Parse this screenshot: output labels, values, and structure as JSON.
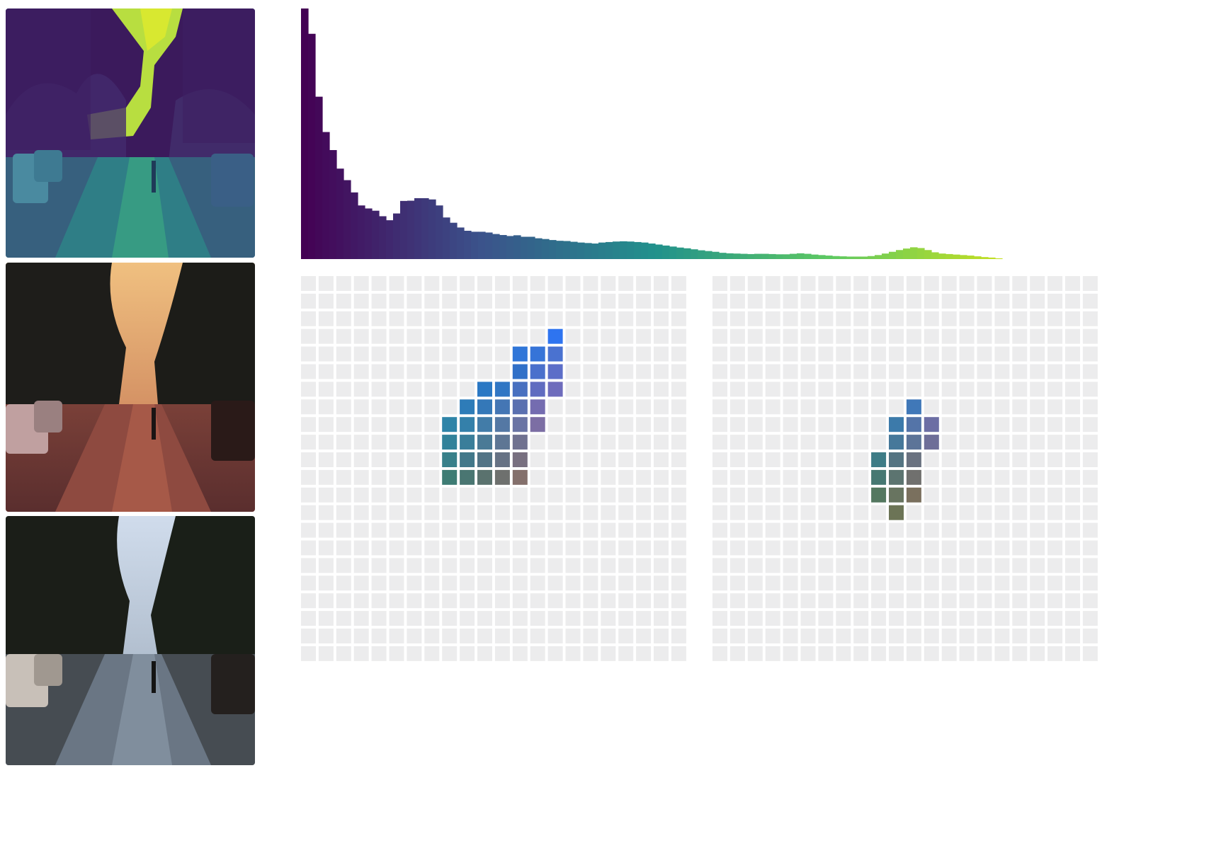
{
  "images": [
    {
      "name": "viridis-luminance-thumbnail",
      "palette": "viridis"
    },
    {
      "name": "sunset-street-photo",
      "palette": "warm"
    },
    {
      "name": "cool-street-photo",
      "palette": "cool"
    }
  ],
  "colors": {
    "empty_cell": "#ececed",
    "viridis": [
      "#440154",
      "#3b528b",
      "#21918c",
      "#5ec962",
      "#c8e020"
    ],
    "warm_sky": "#e8b070",
    "cool_sky": "#c6d0e0"
  },
  "chart_data": [
    {
      "type": "bar",
      "colormap": "viridis",
      "x": [
        0,
        1,
        2,
        3,
        4,
        5,
        6,
        7,
        8,
        9,
        10,
        11,
        12,
        13,
        14,
        15,
        16,
        17,
        18,
        19,
        20,
        21,
        22,
        23,
        24,
        25,
        26,
        27,
        28,
        29,
        30,
        31,
        32,
        33,
        34,
        35,
        36,
        37,
        38,
        39,
        40,
        41,
        42,
        43,
        44,
        45,
        46,
        47,
        48,
        49,
        50,
        51,
        52,
        53,
        54,
        55,
        56,
        57,
        58,
        59,
        60,
        61,
        62,
        63,
        64,
        65,
        66,
        67,
        68,
        69,
        70,
        71,
        72,
        73,
        74,
        75,
        76,
        77,
        78,
        79,
        80,
        81,
        82,
        83,
        84,
        85,
        86,
        87,
        88,
        89,
        90,
        91,
        92,
        93,
        94,
        95,
        96,
        97,
        98,
        99
      ],
      "values": [
        100,
        89.9,
        64.8,
        50.7,
        43.5,
        36.1,
        31.5,
        26.6,
        21.4,
        20.2,
        19.3,
        17.1,
        15.5,
        18.2,
        23.2,
        23.3,
        24.3,
        24.3,
        23.8,
        21.4,
        16.6,
        14.5,
        12.6,
        11.3,
        10.9,
        10.9,
        10.6,
        10.0,
        9.6,
        9.2,
        9.5,
        8.9,
        8.9,
        8.3,
        8.0,
        7.6,
        7.3,
        7.2,
        6.9,
        6.6,
        6.4,
        6.2,
        6.6,
        6.8,
        7.0,
        7.1,
        7.0,
        6.8,
        6.6,
        6.2,
        5.8,
        5.4,
        5.0,
        4.6,
        4.3,
        3.9,
        3.5,
        3.2,
        2.9,
        2.5,
        2.3,
        2.2,
        2.1,
        2.0,
        2.1,
        2.1,
        2.0,
        1.9,
        1.9,
        2.1,
        2.3,
        2.1,
        1.8,
        1.6,
        1.4,
        1.2,
        1.1,
        1.0,
        1.0,
        1.0,
        1.2,
        1.6,
        2.2,
        2.9,
        3.6,
        4.2,
        4.7,
        4.4,
        3.6,
        2.7,
        2.2,
        2.0,
        1.8,
        1.6,
        1.4,
        1.1,
        0.8,
        0.6,
        0.3,
        0.0
      ],
      "ylim": [
        0,
        100
      ]
    },
    {
      "type": "heatmap",
      "rows": 22,
      "cols": 22,
      "cells": [
        {
          "r": 3,
          "c": 14,
          "color": "#2e74f0"
        },
        {
          "r": 4,
          "c": 12,
          "color": "#3076d8"
        },
        {
          "r": 4,
          "c": 13,
          "color": "#3674d8"
        },
        {
          "r": 4,
          "c": 14,
          "color": "#4a72d0"
        },
        {
          "r": 5,
          "c": 12,
          "color": "#3070c8"
        },
        {
          "r": 5,
          "c": 13,
          "color": "#4a70cc"
        },
        {
          "r": 5,
          "c": 14,
          "color": "#5c6ec8"
        },
        {
          "r": 6,
          "c": 10,
          "color": "#2a78c4"
        },
        {
          "r": 6,
          "c": 11,
          "color": "#3076c4"
        },
        {
          "r": 6,
          "c": 12,
          "color": "#4870c0"
        },
        {
          "r": 6,
          "c": 13,
          "color": "#606cc0"
        },
        {
          "r": 6,
          "c": 14,
          "color": "#6e6cbc"
        },
        {
          "r": 7,
          "c": 9,
          "color": "#2e7cb8"
        },
        {
          "r": 7,
          "c": 10,
          "color": "#3478b8"
        },
        {
          "r": 7,
          "c": 11,
          "color": "#4476b4"
        },
        {
          "r": 7,
          "c": 12,
          "color": "#5a70b0"
        },
        {
          "r": 7,
          "c": 13,
          "color": "#746cb0"
        },
        {
          "r": 8,
          "c": 8,
          "color": "#2e84a8"
        },
        {
          "r": 8,
          "c": 9,
          "color": "#3480aa"
        },
        {
          "r": 8,
          "c": 10,
          "color": "#427ca8"
        },
        {
          "r": 8,
          "c": 11,
          "color": "#5478a4"
        },
        {
          "r": 8,
          "c": 12,
          "color": "#6a74a4"
        },
        {
          "r": 8,
          "c": 13,
          "color": "#7c6ea4"
        },
        {
          "r": 9,
          "c": 8,
          "color": "#32829a"
        },
        {
          "r": 9,
          "c": 9,
          "color": "#3a7e9a"
        },
        {
          "r": 9,
          "c": 10,
          "color": "#4a7a96"
        },
        {
          "r": 9,
          "c": 11,
          "color": "#5e7694"
        },
        {
          "r": 9,
          "c": 12,
          "color": "#707290"
        },
        {
          "r": 10,
          "c": 8,
          "color": "#38808a"
        },
        {
          "r": 10,
          "c": 9,
          "color": "#42788a"
        },
        {
          "r": 10,
          "c": 10,
          "color": "#527486"
        },
        {
          "r": 10,
          "c": 11,
          "color": "#667284"
        },
        {
          "r": 10,
          "c": 12,
          "color": "#787080"
        },
        {
          "r": 11,
          "c": 8,
          "color": "#3e7c74"
        },
        {
          "r": 11,
          "c": 9,
          "color": "#4a7672"
        },
        {
          "r": 11,
          "c": 10,
          "color": "#5a726e"
        },
        {
          "r": 11,
          "c": 11,
          "color": "#6e706e"
        },
        {
          "r": 11,
          "c": 12,
          "color": "#84706c"
        }
      ]
    },
    {
      "type": "heatmap",
      "rows": 22,
      "cols": 22,
      "cells": [
        {
          "r": 7,
          "c": 11,
          "color": "#4078b8"
        },
        {
          "r": 8,
          "c": 10,
          "color": "#3c7aaa"
        },
        {
          "r": 8,
          "c": 11,
          "color": "#5474a8"
        },
        {
          "r": 8,
          "c": 12,
          "color": "#6c6ea4"
        },
        {
          "r": 9,
          "c": 10,
          "color": "#46789a"
        },
        {
          "r": 9,
          "c": 11,
          "color": "#5c7498"
        },
        {
          "r": 9,
          "c": 12,
          "color": "#6e6e98"
        },
        {
          "r": 10,
          "c": 9,
          "color": "#3e7c86"
        },
        {
          "r": 10,
          "c": 10,
          "color": "#547482"
        },
        {
          "r": 10,
          "c": 11,
          "color": "#6a7280"
        },
        {
          "r": 11,
          "c": 9,
          "color": "#467872"
        },
        {
          "r": 11,
          "c": 10,
          "color": "#5c7470"
        },
        {
          "r": 11,
          "c": 11,
          "color": "#70706e"
        },
        {
          "r": 12,
          "c": 9,
          "color": "#547860"
        },
        {
          "r": 12,
          "c": 10,
          "color": "#687460"
        },
        {
          "r": 12,
          "c": 11,
          "color": "#7a705e"
        },
        {
          "r": 13,
          "c": 10,
          "color": "#6c7456"
        }
      ]
    }
  ]
}
